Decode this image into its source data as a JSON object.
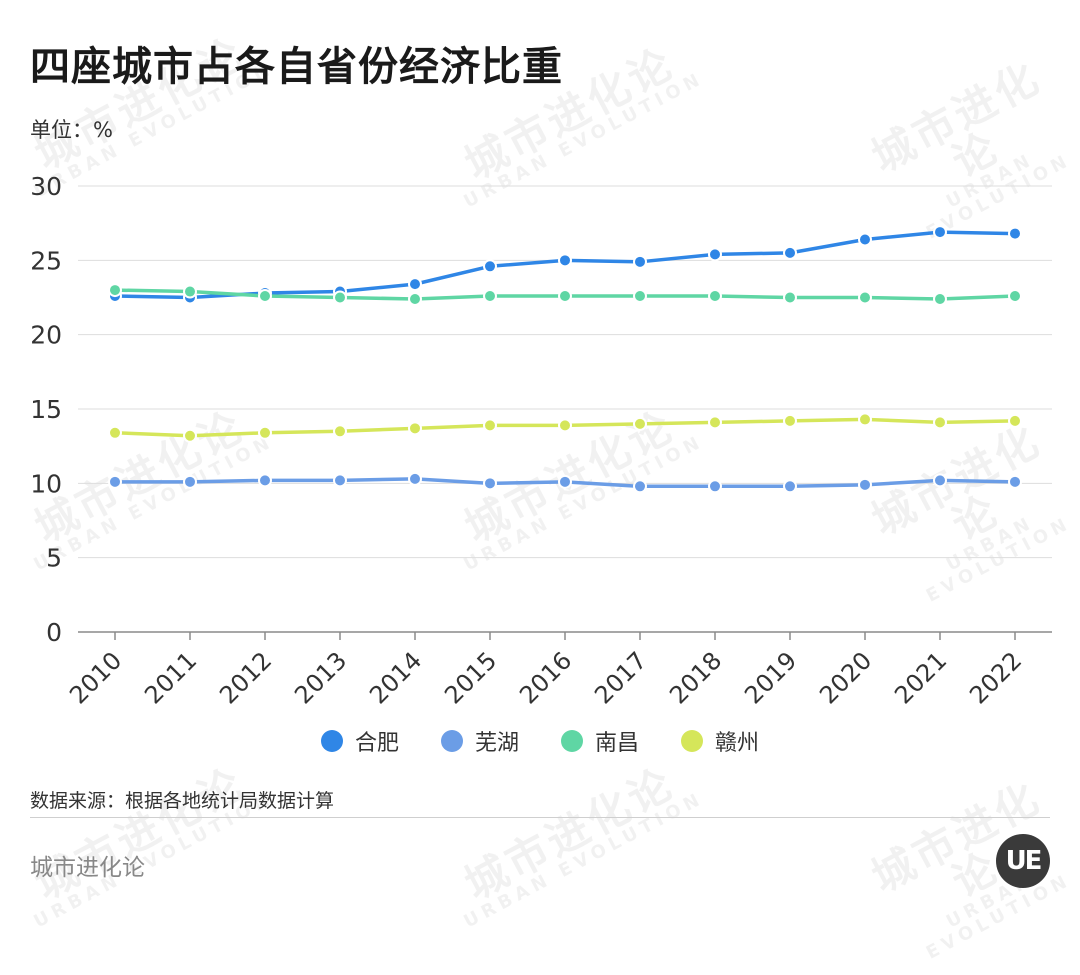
{
  "title": "四座城市占各自省份经济比重",
  "unit_label": "单位：%",
  "source": "数据来源：根据各地统计局数据计算",
  "brand": {
    "name": "城市进化论",
    "logo_text": "UE",
    "watermark_main": "城市进化论",
    "watermark_sub": "URBAN EVOLUTION"
  },
  "chart_data": {
    "type": "line",
    "categories": [
      "2010",
      "2011",
      "2012",
      "2013",
      "2014",
      "2015",
      "2016",
      "2017",
      "2018",
      "2019",
      "2020",
      "2021",
      "2022"
    ],
    "ylim": [
      0,
      30
    ],
    "yticks": [
      0,
      5,
      10,
      15,
      20,
      25,
      30
    ],
    "grid": true,
    "legend_position": "bottom",
    "series": [
      {
        "name": "合肥",
        "color": "#2f86e6",
        "values": [
          22.6,
          22.5,
          22.8,
          22.9,
          23.4,
          24.6,
          25.0,
          24.9,
          25.4,
          25.5,
          26.4,
          26.9,
          26.8
        ]
      },
      {
        "name": "芜湖",
        "color": "#6b9de6",
        "values": [
          10.1,
          10.1,
          10.2,
          10.2,
          10.3,
          10.0,
          10.1,
          9.8,
          9.8,
          9.8,
          9.9,
          10.2,
          10.1
        ]
      },
      {
        "name": "南昌",
        "color": "#5fd6a4",
        "values": [
          23.0,
          22.9,
          22.6,
          22.5,
          22.4,
          22.6,
          22.6,
          22.6,
          22.6,
          22.5,
          22.5,
          22.4,
          22.6
        ]
      },
      {
        "name": "赣州",
        "color": "#d5e65a",
        "values": [
          13.4,
          13.2,
          13.4,
          13.5,
          13.7,
          13.9,
          13.9,
          14.0,
          14.1,
          14.2,
          14.3,
          14.1,
          14.2
        ]
      }
    ]
  }
}
